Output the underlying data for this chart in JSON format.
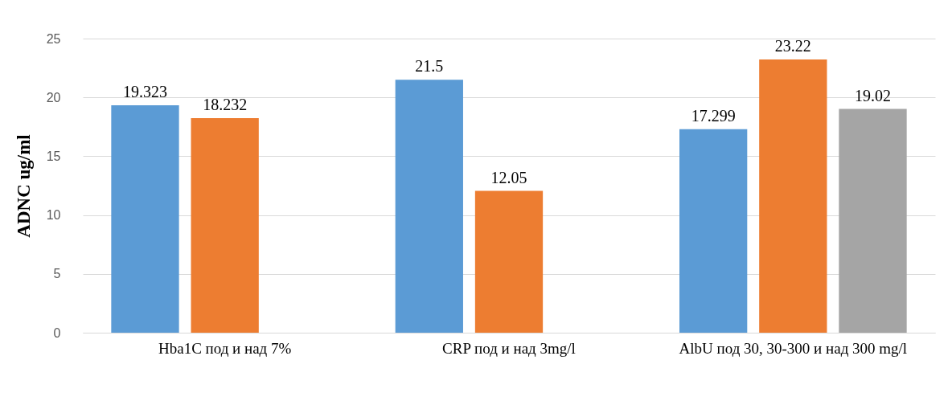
{
  "chart_data": {
    "type": "bar",
    "ylabel": "ADNC ug/ml",
    "categories": [
      "Hba1C под и над 7%",
      "CRP под и над 3mg/l",
      "AlbU под 30, 30-300 и над 300 mg/l"
    ],
    "series": [
      {
        "color": "#5b9bd5",
        "values": [
          19.323,
          21.5,
          17.299
        ]
      },
      {
        "color": "#ed7d31",
        "values": [
          18.232,
          12.05,
          23.22
        ]
      },
      {
        "color": "#a5a5a5",
        "values": [
          null,
          null,
          19.02
        ]
      }
    ],
    "ylim": [
      0,
      25
    ],
    "yticks": [
      0,
      5,
      10,
      15,
      20,
      25
    ],
    "grid": "y",
    "data_labels": true
  }
}
